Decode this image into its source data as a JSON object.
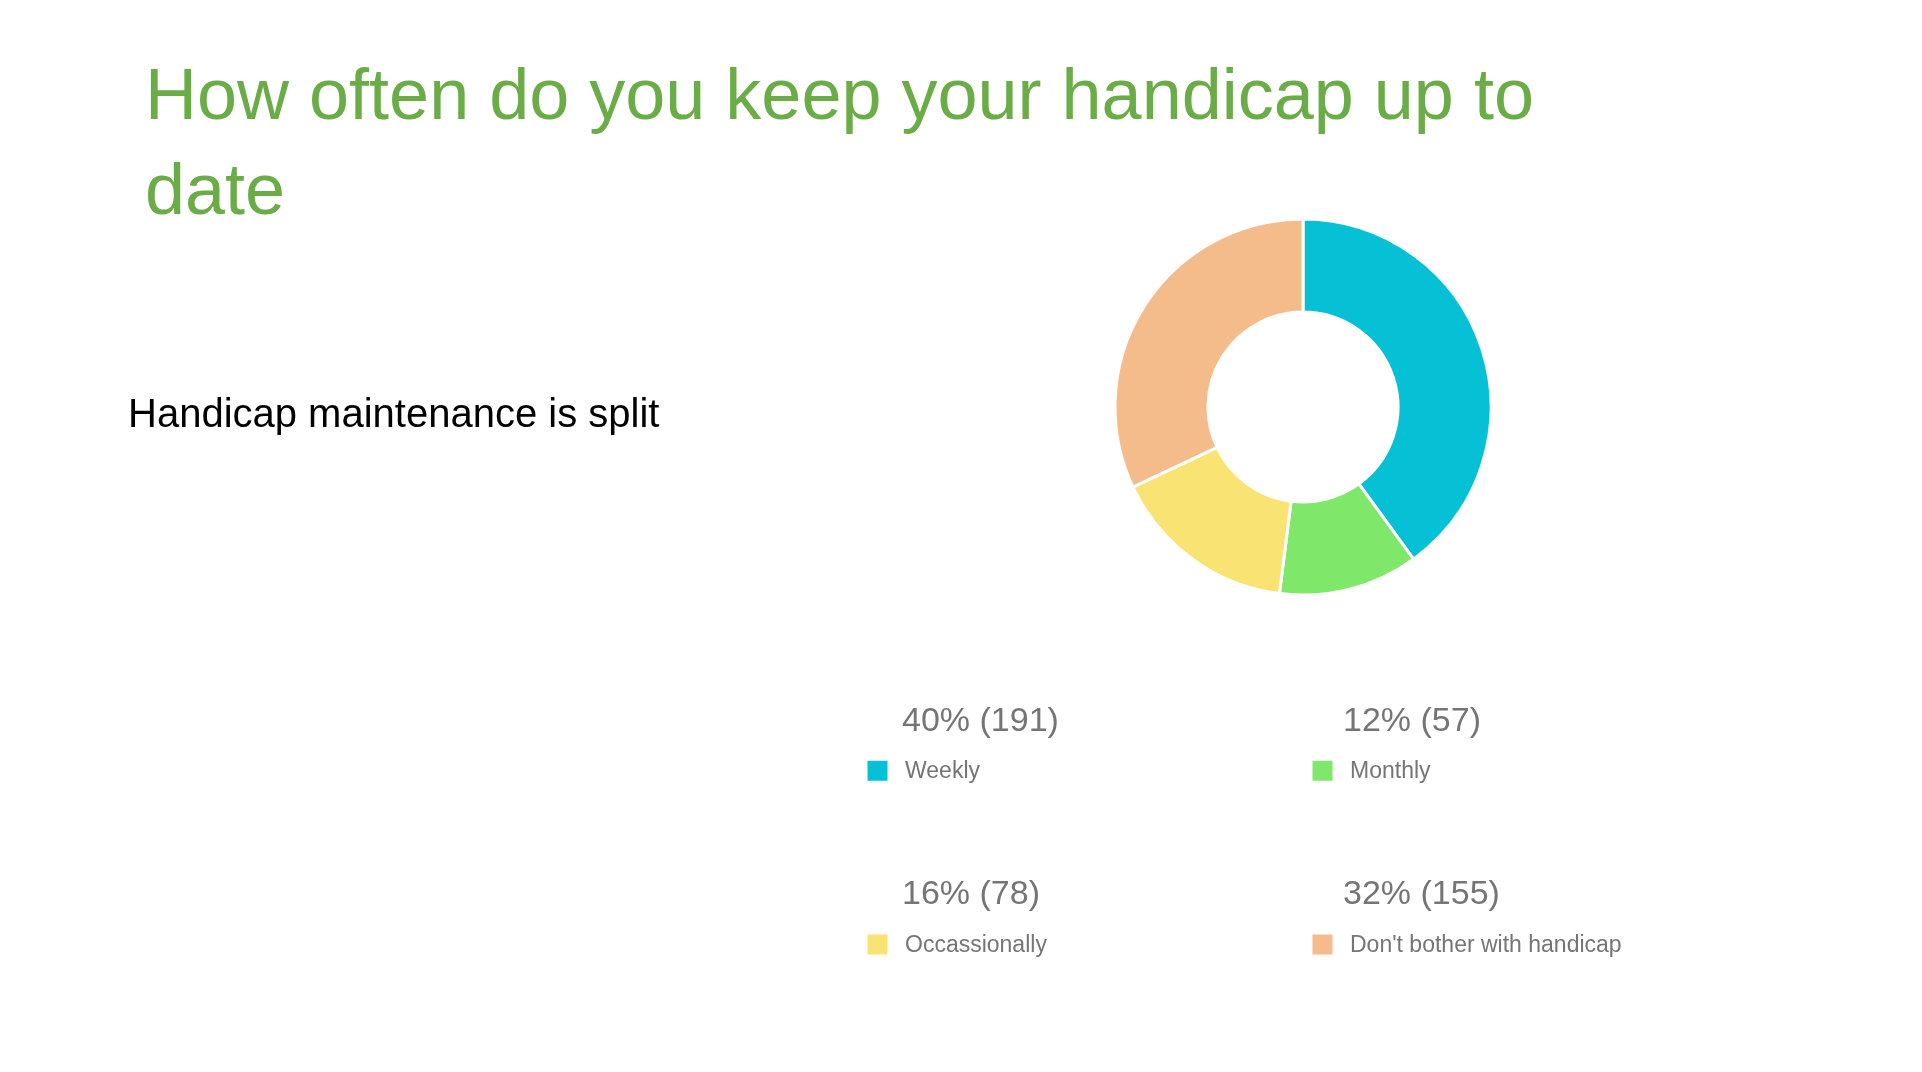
{
  "chart_data": {
    "type": "donut",
    "title": "How often do you keep your handicap up to date",
    "annotations": [
      "Handicap maintenance is split"
    ],
    "categories": [
      "Weekly",
      "Monthly",
      "Occassionally",
      "Don't bother with handicap"
    ],
    "values": [
      40,
      12,
      16,
      32
    ],
    "value_labels": [
      "40% (191)",
      "12% (57)",
      "16% (78)",
      "32% (155)"
    ],
    "colors": [
      "#06c0d5",
      "#7fe86a",
      "#f9e372",
      "#f4bb8b"
    ],
    "legend": "bottom"
  }
}
